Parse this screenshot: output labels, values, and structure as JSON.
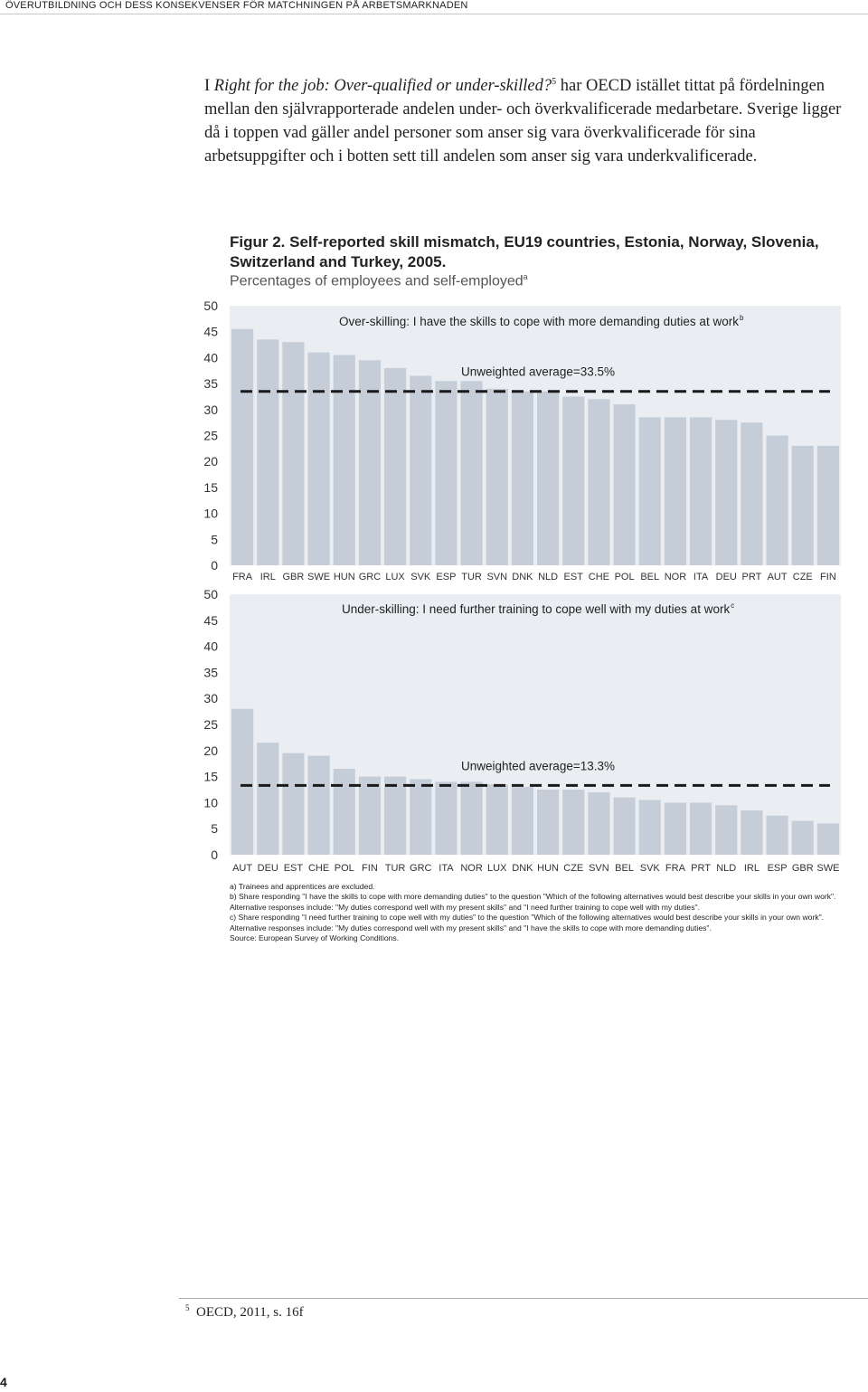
{
  "header": "ÖVERUTBILDNING OCH DESS KONSEKVENSER FÖR MATCHNINGEN PÅ ARBETSMARKNADEN",
  "intro": {
    "pre": "I ",
    "italic": "Right for the job: Over-qualified or under-skilled?",
    "sup": "5",
    "rest": " har OECD istället tittat på fördelningen mellan den självrapporterade andelen under- och överkvalificerade medarbetare. Sverige ligger då i toppen vad gäller andel personer som anser sig vara överkvalificerade för sina arbetsuppgifter och i botten sett till andelen som anser sig vara underkvalificerade."
  },
  "figure": {
    "title": "Figur 2.  Self-reported skill mismatch, EU19 countries, Estonia, Norway, Slovenia, Switzerland and Turkey, 2005.",
    "subtitle": "Percentages of employees and self-employed",
    "subtitle_sup": "a"
  },
  "chart_data": [
    {
      "type": "bar",
      "title": "Over-skilling: I have the skills to cope with more demanding duties at work",
      "title_sup": "b",
      "categories": [
        "FRA",
        "IRL",
        "GBR",
        "SWE",
        "HUN",
        "GRC",
        "LUX",
        "SVK",
        "ESP",
        "TUR",
        "SVN",
        "DNK",
        "NLD",
        "EST",
        "CHE",
        "POL",
        "BEL",
        "NOR",
        "ITA",
        "DEU",
        "PRT",
        "AUT",
        "CZE",
        "FIN"
      ],
      "values": [
        45.5,
        43.5,
        43.0,
        41.0,
        40.5,
        39.5,
        38.0,
        36.5,
        35.5,
        35.5,
        34.0,
        33.5,
        33.5,
        32.5,
        32.0,
        31.0,
        28.5,
        28.5,
        28.5,
        28.0,
        27.5,
        25.0,
        23.0,
        23.0
      ],
      "average": 33.5,
      "average_label": "Unweighted average=33.5%",
      "yticks": [
        0,
        5,
        10,
        15,
        20,
        25,
        30,
        35,
        40,
        45,
        50
      ],
      "ylim": [
        0,
        50
      ],
      "bar_color": "#c5ced8",
      "panel_color": "#eaedf1"
    },
    {
      "type": "bar",
      "title": "Under-skilling: I need further training to cope well with my duties at work",
      "title_sup": "c",
      "categories": [
        "AUT",
        "DEU",
        "EST",
        "CHE",
        "POL",
        "FIN",
        "TUR",
        "GRC",
        "ITA",
        "NOR",
        "LUX",
        "DNK",
        "HUN",
        "CZE",
        "SVN",
        "BEL",
        "SVK",
        "FRA",
        "PRT",
        "NLD",
        "IRL",
        "ESP",
        "GBR",
        "SWE"
      ],
      "values": [
        28.0,
        21.5,
        19.5,
        19.0,
        16.5,
        15.0,
        15.0,
        14.5,
        14.0,
        14.0,
        13.5,
        13.0,
        12.5,
        12.5,
        12.0,
        11.0,
        10.5,
        10.0,
        10.0,
        9.5,
        8.5,
        7.5,
        6.5,
        6.0
      ],
      "average": 13.3,
      "average_label": "Unweighted average=13.3%",
      "yticks": [
        0,
        5,
        10,
        15,
        20,
        25,
        30,
        35,
        40,
        45,
        50
      ],
      "ylim": [
        0,
        50
      ],
      "bar_color": "#c5ced8",
      "panel_color": "#eaedf1"
    }
  ],
  "notes": [
    "a) Trainees and apprentices are excluded.",
    "b) Share responding \"I have the skills to cope with more demanding duties\" to the question \"Which of the following alternatives would best describe your skills in your own work\".",
    "Alternative responses include: \"My duties correspond well with my present skills\" and \"I need further training to cope well with my duties\".",
    "c) Share responding \"I need further training to cope well with my duties\" to the question \"Which of the following alternatives would best describe your skills in your own work\".",
    "Alternative responses include: \"My duties correspond well with my present skills\" and \"I have the skills to cope with more demanding duties\".",
    "Source: European Survey of Working Conditions."
  ],
  "footnote": {
    "sup": "5",
    "text": "OECD, 2011, s. 16f"
  },
  "page_number": "4"
}
